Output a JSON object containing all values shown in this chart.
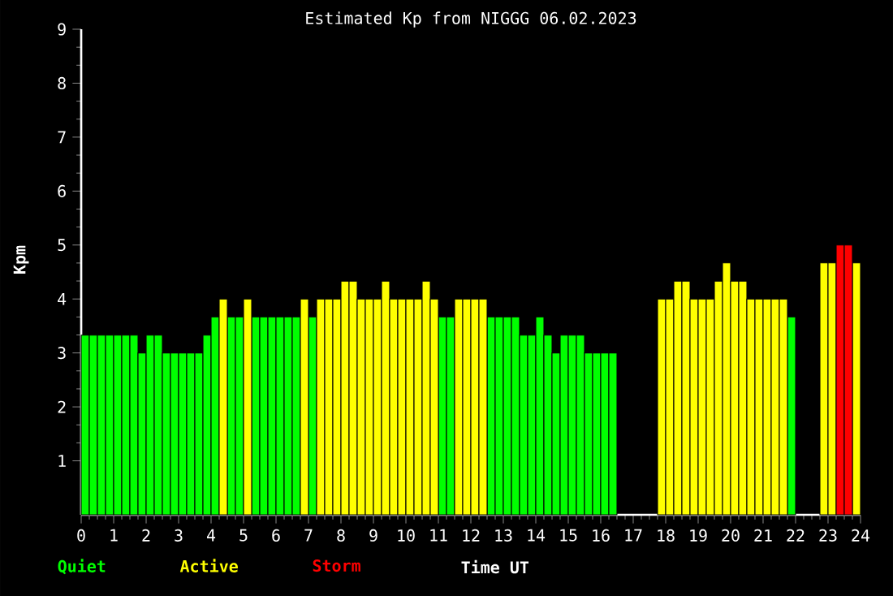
{
  "chart_data": {
    "type": "bar",
    "title": "Estimated Kp from NIGGG 06.02.2023",
    "xlabel": "Time UT",
    "ylabel": "Kpm",
    "xlim": [
      0,
      24
    ],
    "xticks": [
      0,
      1,
      2,
      3,
      4,
      5,
      6,
      7,
      8,
      9,
      10,
      11,
      12,
      13,
      14,
      15,
      16,
      17,
      18,
      19,
      20,
      21,
      22,
      23,
      24
    ],
    "ylim": [
      0,
      9
    ],
    "yticks": [
      1,
      2,
      3,
      4,
      5,
      6,
      7,
      8,
      9
    ],
    "legend": "bottom left",
    "grid": false,
    "series": [
      {
        "name": "Quiet",
        "color": "#00ff00",
        "x": [
          0.125,
          0.375,
          0.625,
          0.875,
          1.125,
          1.375,
          1.625,
          1.875,
          2.125,
          2.375,
          2.625,
          2.875,
          3.125,
          3.375,
          3.625,
          3.875,
          4.125,
          4.625,
          4.875,
          5.375,
          5.625,
          5.875,
          6.125,
          6.375,
          6.625,
          7.125,
          11.125,
          11.375,
          12.625,
          12.875,
          13.125,
          13.375,
          13.625,
          13.875,
          14.125,
          14.375,
          14.625,
          14.875,
          15.125,
          15.375,
          15.625,
          15.875,
          16.125,
          16.375,
          21.875
        ],
        "values": [
          3.33,
          3.33,
          3.33,
          3.33,
          3.33,
          3.33,
          3.33,
          3.0,
          3.33,
          3.33,
          3.0,
          3.0,
          3.0,
          3.0,
          3.0,
          3.33,
          3.67,
          3.67,
          3.67,
          3.67,
          3.67,
          3.67,
          3.67,
          3.67,
          3.67,
          3.67,
          3.67,
          3.67,
          3.67,
          3.67,
          3.67,
          3.67,
          3.33,
          3.33,
          3.67,
          3.33,
          3.0,
          3.33,
          3.33,
          3.33,
          3.0,
          3.0,
          3.0,
          3.0,
          3.67
        ]
      },
      {
        "name": "Active",
        "color": "#ffff00",
        "x": [
          4.375,
          5.125,
          6.875,
          7.375,
          7.625,
          7.875,
          8.125,
          8.375,
          8.625,
          8.875,
          9.125,
          9.375,
          9.625,
          9.875,
          10.125,
          10.375,
          10.625,
          10.875,
          11.625,
          11.875,
          12.125,
          12.375,
          17.875,
          18.125,
          18.375,
          18.625,
          18.875,
          19.125,
          19.375,
          19.625,
          19.875,
          20.125,
          20.375,
          20.625,
          20.875,
          21.125,
          21.375,
          21.625,
          22.875,
          23.125,
          23.875
        ],
        "values": [
          4,
          4,
          4,
          4,
          4,
          4,
          4.33,
          4.33,
          4,
          4,
          4,
          4.33,
          4,
          4,
          4,
          4,
          4.33,
          4,
          4,
          4,
          4,
          4,
          4,
          4,
          4.33,
          4.33,
          4,
          4,
          4,
          4.33,
          4.67,
          4.33,
          4.33,
          4,
          4,
          4,
          4,
          4,
          4.67,
          4.67,
          4.67
        ]
      },
      {
        "name": "Storm",
        "color": "#ff0000",
        "x": [
          23.375,
          23.625
        ],
        "values": [
          5,
          5
        ]
      }
    ]
  }
}
